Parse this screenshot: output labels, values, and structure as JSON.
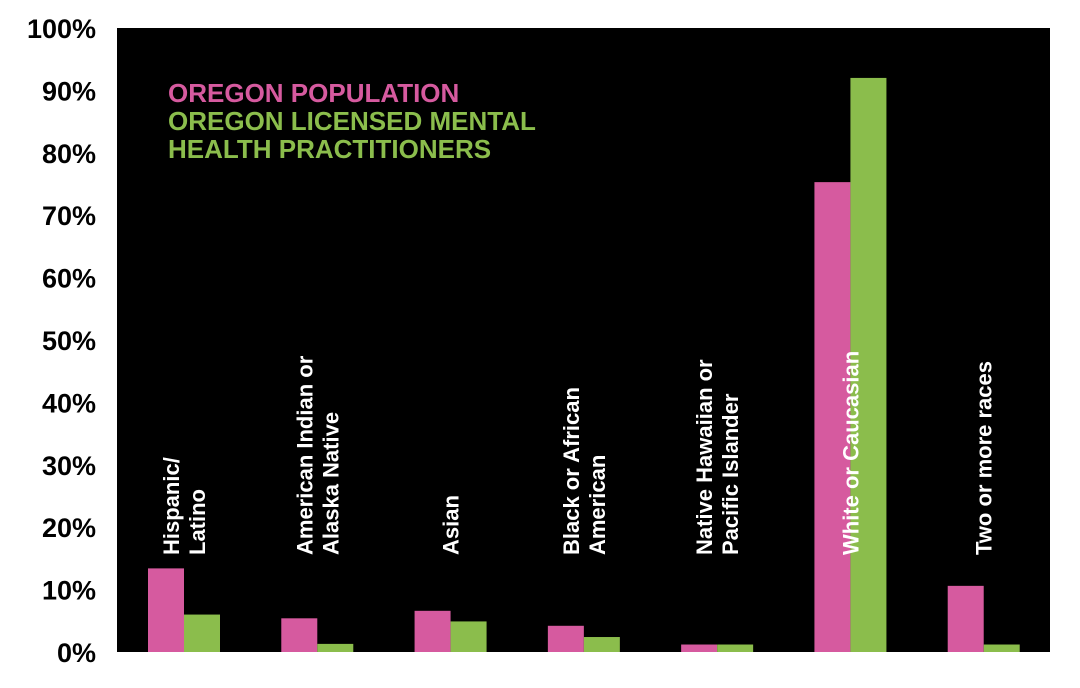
{
  "chart_data": {
    "type": "bar",
    "title": "",
    "xlabel": "",
    "ylabel": "",
    "ylim": [
      0,
      100
    ],
    "y_ticks": [
      "0%",
      "10%",
      "20%",
      "30%",
      "40%",
      "50%",
      "60%",
      "70%",
      "80%",
      "90%",
      "100%"
    ],
    "grid": false,
    "legend_position": "top-left",
    "categories": [
      [
        "Hispanic/",
        "Latino"
      ],
      [
        "American Indian or",
        "Alaska Native"
      ],
      [
        "Asian"
      ],
      [
        "Black or African",
        "American"
      ],
      [
        "Native Hawaiian or",
        "Pacific Islander"
      ],
      [
        "White or Caucasian"
      ],
      [
        "Two or more races"
      ]
    ],
    "series": [
      {
        "name": "OREGON POPULATION",
        "color": "#d65a9f",
        "values": [
          13.4,
          5.4,
          6.6,
          4.2,
          1.2,
          75.3,
          10.6
        ]
      },
      {
        "name": "OREGON LICENSED MENTAL HEALTH PRACTITIONERS",
        "legend_lines": [
          "OREGON LICENSED MENTAL",
          "HEALTH PRACTITIONERS"
        ],
        "color": "#8bbd4c",
        "values": [
          6.0,
          1.3,
          4.9,
          2.4,
          1.2,
          92.0,
          1.2
        ]
      }
    ],
    "plot_background": "#000000"
  }
}
